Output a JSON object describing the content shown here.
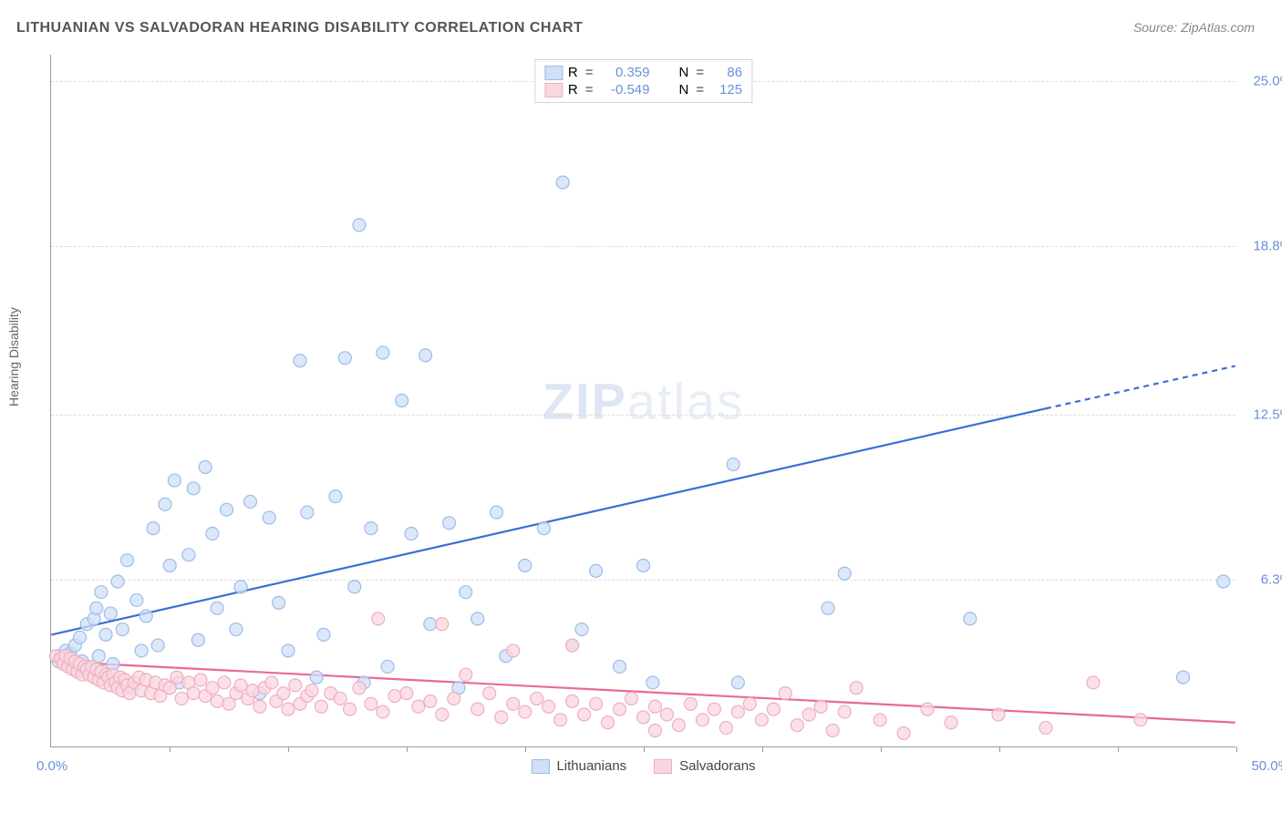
{
  "title": "LITHUANIAN VS SALVADORAN HEARING DISABILITY CORRELATION CHART",
  "source_prefix": "Source: ",
  "source": "ZipAtlas.com",
  "ylabel": "Hearing Disability",
  "watermark": "ZIPatlas",
  "chart": {
    "type": "scatter",
    "xlim": [
      0,
      50
    ],
    "ylim": [
      0,
      26
    ],
    "x_ticks": [
      5,
      10,
      15,
      20,
      25,
      30,
      35,
      40,
      45,
      50
    ],
    "x0_label": "0.0%",
    "x1_label": "50.0%",
    "y_gridlines": [
      6.3,
      12.5,
      18.8,
      25.0
    ],
    "y_labels": [
      "6.3%",
      "12.5%",
      "18.8%",
      "25.0%"
    ],
    "background_color": "#ffffff",
    "grid_color": "#dddddd",
    "axis_color": "#999999",
    "marker_radius": 7,
    "marker_stroke_width": 1.2,
    "line_width": 2.2,
    "label_fontsize": 15,
    "title_fontsize": 16
  },
  "series": [
    {
      "name": "Lithuanians",
      "color_fill": "#cfe0f7",
      "color_stroke": "#9dbce8",
      "trend_color": "#3b6fd6",
      "R": "0.359",
      "N": "86",
      "trend_start": [
        0,
        4.2
      ],
      "trend_solid_end": [
        42,
        12.7
      ],
      "trend_dash_end": [
        50,
        14.3
      ],
      "points": [
        [
          0.3,
          3.2
        ],
        [
          0.4,
          3.4
        ],
        [
          0.5,
          3.3
        ],
        [
          0.6,
          3.6
        ],
        [
          0.7,
          3.1
        ],
        [
          0.8,
          3.5
        ],
        [
          0.9,
          3.0
        ],
        [
          1.0,
          3.8
        ],
        [
          1.1,
          2.9
        ],
        [
          1.2,
          4.1
        ],
        [
          1.3,
          3.2
        ],
        [
          1.5,
          4.6
        ],
        [
          1.6,
          3.0
        ],
        [
          1.8,
          4.8
        ],
        [
          1.9,
          5.2
        ],
        [
          2.0,
          3.4
        ],
        [
          2.1,
          5.8
        ],
        [
          2.3,
          4.2
        ],
        [
          2.5,
          5.0
        ],
        [
          2.6,
          3.1
        ],
        [
          2.8,
          6.2
        ],
        [
          3.0,
          4.4
        ],
        [
          3.2,
          7.0
        ],
        [
          3.4,
          2.2
        ],
        [
          3.6,
          5.5
        ],
        [
          3.8,
          3.6
        ],
        [
          4.0,
          4.9
        ],
        [
          4.3,
          8.2
        ],
        [
          4.5,
          3.8
        ],
        [
          4.8,
          9.1
        ],
        [
          5.0,
          6.8
        ],
        [
          5.2,
          10.0
        ],
        [
          5.4,
          2.4
        ],
        [
          5.8,
          7.2
        ],
        [
          6.0,
          9.7
        ],
        [
          6.2,
          4.0
        ],
        [
          6.5,
          10.5
        ],
        [
          6.8,
          8.0
        ],
        [
          7.0,
          5.2
        ],
        [
          7.4,
          8.9
        ],
        [
          7.8,
          4.4
        ],
        [
          8.0,
          6.0
        ],
        [
          8.4,
          9.2
        ],
        [
          8.8,
          2.0
        ],
        [
          9.2,
          8.6
        ],
        [
          9.6,
          5.4
        ],
        [
          10.0,
          3.6
        ],
        [
          10.5,
          14.5
        ],
        [
          10.8,
          8.8
        ],
        [
          11.2,
          2.6
        ],
        [
          11.5,
          4.2
        ],
        [
          12.0,
          9.4
        ],
        [
          12.4,
          14.6
        ],
        [
          12.8,
          6.0
        ],
        [
          13.0,
          19.6
        ],
        [
          13.5,
          8.2
        ],
        [
          14.0,
          14.8
        ],
        [
          14.2,
          3.0
        ],
        [
          13.2,
          2.4
        ],
        [
          14.8,
          13.0
        ],
        [
          15.2,
          8.0
        ],
        [
          15.8,
          14.7
        ],
        [
          16.0,
          4.6
        ],
        [
          16.8,
          8.4
        ],
        [
          17.2,
          2.2
        ],
        [
          17.5,
          5.8
        ],
        [
          18.0,
          4.8
        ],
        [
          18.8,
          8.8
        ],
        [
          19.2,
          3.4
        ],
        [
          20.0,
          6.8
        ],
        [
          20.8,
          8.2
        ],
        [
          21.6,
          21.2
        ],
        [
          22.0,
          3.8
        ],
        [
          22.4,
          4.4
        ],
        [
          23.0,
          6.6
        ],
        [
          24.0,
          3.0
        ],
        [
          25.0,
          6.8
        ],
        [
          25.4,
          2.4
        ],
        [
          28.8,
          10.6
        ],
        [
          29.0,
          2.4
        ],
        [
          33.5,
          6.5
        ],
        [
          32.8,
          5.2
        ],
        [
          38.8,
          4.8
        ],
        [
          47.8,
          2.6
        ],
        [
          49.5,
          6.2
        ]
      ]
    },
    {
      "name": "Salvadorans",
      "color_fill": "#f9d7df",
      "color_stroke": "#efaec0",
      "trend_color": "#e86a93",
      "R": "-0.549",
      "N": "125",
      "trend_start": [
        0,
        3.2
      ],
      "trend_solid_end": [
        50,
        0.9
      ],
      "trend_dash_end": [
        50,
        0.9
      ],
      "points": [
        [
          0.2,
          3.4
        ],
        [
          0.4,
          3.3
        ],
        [
          0.5,
          3.1
        ],
        [
          0.6,
          3.4
        ],
        [
          0.7,
          3.0
        ],
        [
          0.8,
          3.3
        ],
        [
          0.9,
          2.9
        ],
        [
          1.0,
          3.2
        ],
        [
          1.1,
          2.8
        ],
        [
          1.2,
          3.1
        ],
        [
          1.3,
          2.7
        ],
        [
          1.4,
          3.0
        ],
        [
          1.5,
          2.9
        ],
        [
          1.6,
          2.7
        ],
        [
          1.7,
          3.0
        ],
        [
          1.8,
          2.6
        ],
        [
          1.9,
          2.9
        ],
        [
          2.0,
          2.5
        ],
        [
          2.1,
          2.8
        ],
        [
          2.2,
          2.4
        ],
        [
          2.3,
          2.7
        ],
        [
          2.4,
          2.6
        ],
        [
          2.5,
          2.3
        ],
        [
          2.6,
          2.7
        ],
        [
          2.7,
          2.4
        ],
        [
          2.8,
          2.2
        ],
        [
          2.9,
          2.6
        ],
        [
          3.0,
          2.1
        ],
        [
          3.1,
          2.5
        ],
        [
          3.2,
          2.3
        ],
        [
          3.3,
          2.0
        ],
        [
          3.5,
          2.4
        ],
        [
          3.7,
          2.6
        ],
        [
          3.8,
          2.1
        ],
        [
          4.0,
          2.5
        ],
        [
          4.2,
          2.0
        ],
        [
          4.4,
          2.4
        ],
        [
          4.6,
          1.9
        ],
        [
          4.8,
          2.3
        ],
        [
          5.0,
          2.2
        ],
        [
          5.3,
          2.6
        ],
        [
          5.5,
          1.8
        ],
        [
          5.8,
          2.4
        ],
        [
          6.0,
          2.0
        ],
        [
          6.3,
          2.5
        ],
        [
          6.5,
          1.9
        ],
        [
          6.8,
          2.2
        ],
        [
          7.0,
          1.7
        ],
        [
          7.3,
          2.4
        ],
        [
          7.5,
          1.6
        ],
        [
          7.8,
          2.0
        ],
        [
          8.0,
          2.3
        ],
        [
          8.3,
          1.8
        ],
        [
          8.5,
          2.1
        ],
        [
          8.8,
          1.5
        ],
        [
          9.0,
          2.2
        ],
        [
          9.3,
          2.4
        ],
        [
          9.5,
          1.7
        ],
        [
          9.8,
          2.0
        ],
        [
          10.0,
          1.4
        ],
        [
          10.3,
          2.3
        ],
        [
          10.5,
          1.6
        ],
        [
          10.8,
          1.9
        ],
        [
          11.0,
          2.1
        ],
        [
          11.4,
          1.5
        ],
        [
          11.8,
          2.0
        ],
        [
          12.2,
          1.8
        ],
        [
          12.6,
          1.4
        ],
        [
          13.0,
          2.2
        ],
        [
          13.5,
          1.6
        ],
        [
          13.8,
          4.8
        ],
        [
          14.0,
          1.3
        ],
        [
          14.5,
          1.9
        ],
        [
          15.0,
          2.0
        ],
        [
          15.5,
          1.5
        ],
        [
          16.0,
          1.7
        ],
        [
          16.5,
          4.6
        ],
        [
          16.5,
          1.2
        ],
        [
          17.0,
          1.8
        ],
        [
          17.5,
          2.7
        ],
        [
          18.0,
          1.4
        ],
        [
          18.5,
          2.0
        ],
        [
          19.0,
          1.1
        ],
        [
          19.5,
          3.6
        ],
        [
          19.5,
          1.6
        ],
        [
          20.0,
          1.3
        ],
        [
          20.5,
          1.8
        ],
        [
          21.0,
          1.5
        ],
        [
          21.5,
          1.0
        ],
        [
          22.0,
          3.8
        ],
        [
          22.0,
          1.7
        ],
        [
          22.5,
          1.2
        ],
        [
          23.0,
          1.6
        ],
        [
          23.5,
          0.9
        ],
        [
          24.0,
          1.4
        ],
        [
          24.5,
          1.8
        ],
        [
          25.0,
          1.1
        ],
        [
          25.5,
          0.6
        ],
        [
          25.5,
          1.5
        ],
        [
          26.0,
          1.2
        ],
        [
          26.5,
          0.8
        ],
        [
          27.0,
          1.6
        ],
        [
          27.5,
          1.0
        ],
        [
          28.0,
          1.4
        ],
        [
          28.5,
          0.7
        ],
        [
          29.0,
          1.3
        ],
        [
          29.5,
          1.6
        ],
        [
          30.0,
          1.0
        ],
        [
          30.5,
          1.4
        ],
        [
          31.0,
          2.0
        ],
        [
          31.5,
          0.8
        ],
        [
          32.0,
          1.2
        ],
        [
          32.5,
          1.5
        ],
        [
          33.0,
          0.6
        ],
        [
          33.5,
          1.3
        ],
        [
          34.0,
          2.2
        ],
        [
          35.0,
          1.0
        ],
        [
          36.0,
          0.5
        ],
        [
          37.0,
          1.4
        ],
        [
          38.0,
          0.9
        ],
        [
          40.0,
          1.2
        ],
        [
          42.0,
          0.7
        ],
        [
          44.0,
          2.4
        ],
        [
          46.0,
          1.0
        ]
      ]
    }
  ],
  "legend_top": {
    "R_label": "R",
    "N_label": "N",
    "eq": "="
  },
  "legend_bottom": {
    "items": [
      "Lithuanians",
      "Salvadorans"
    ]
  }
}
